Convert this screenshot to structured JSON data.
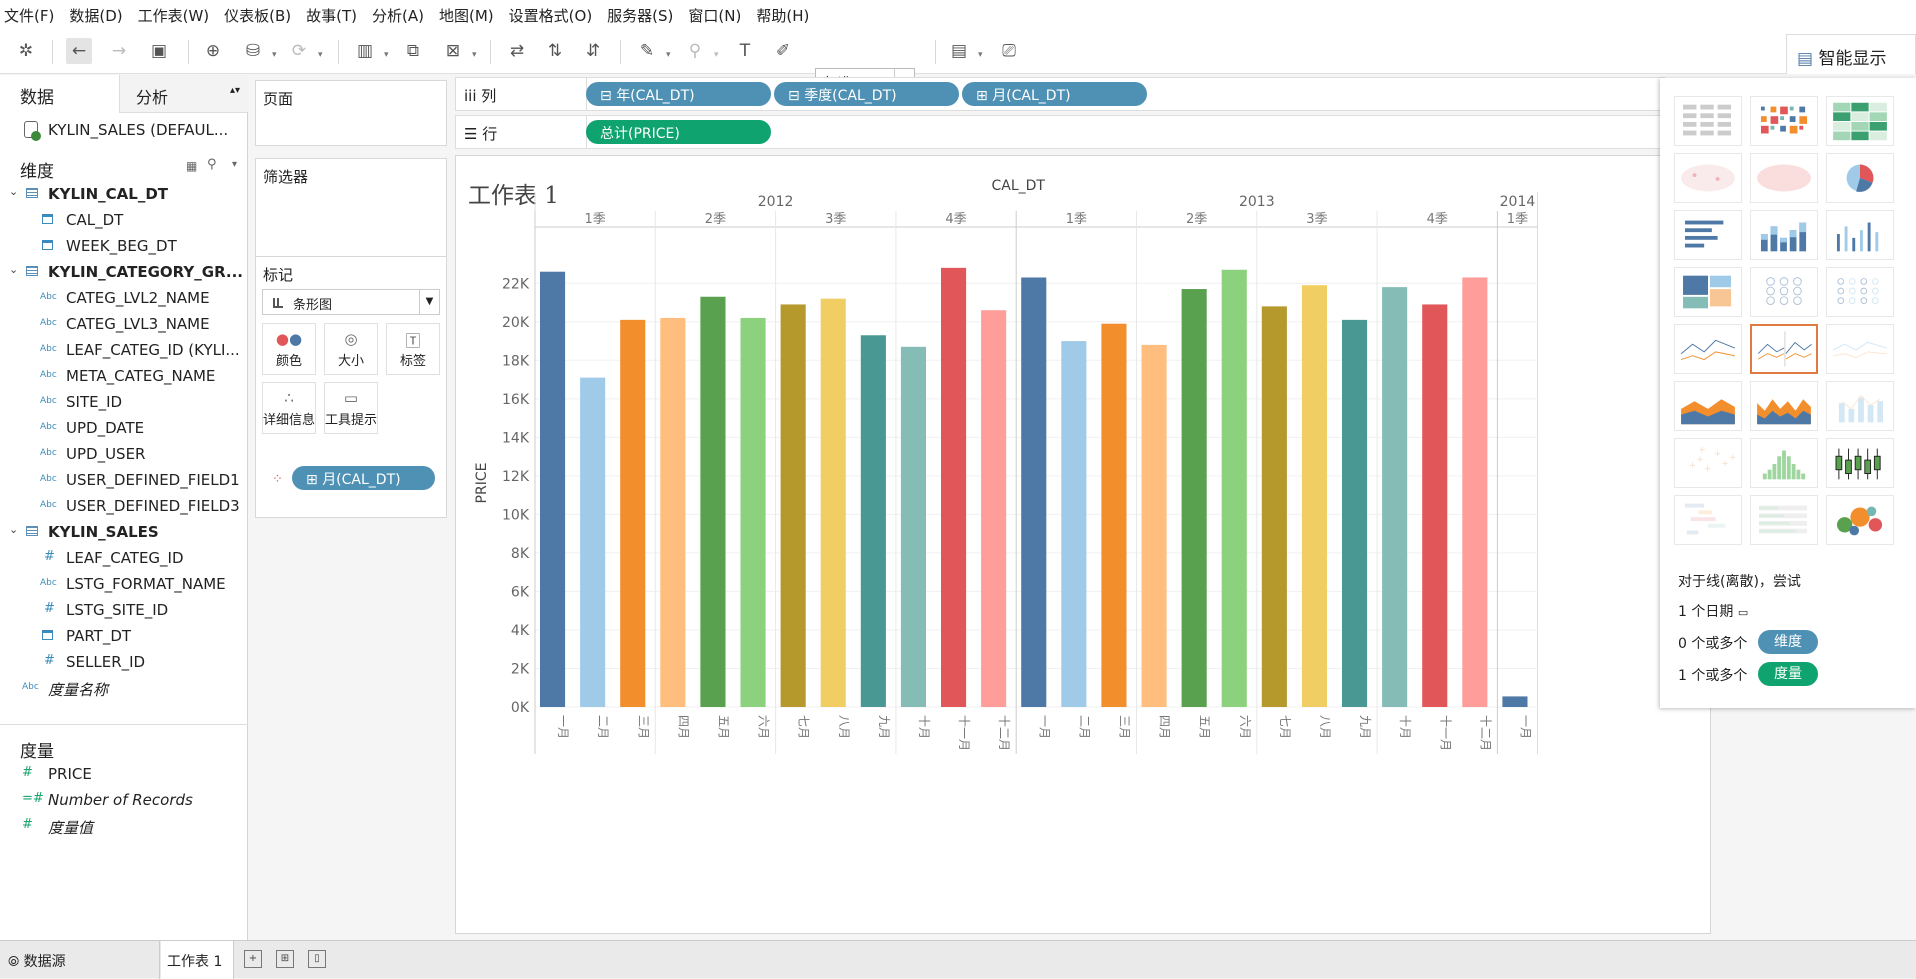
{
  "menu": [
    "文件(F)",
    "数据(D)",
    "工作表(W)",
    "仪表板(B)",
    "故事(T)",
    "分析(A)",
    "地图(M)",
    "设置格式(O)",
    "服务器(S)",
    "窗口(N)",
    "帮助(H)"
  ],
  "toolbar": {
    "fit_select": "标准",
    "smart_show": "智能显示"
  },
  "datapane": {
    "tab_data": "数据",
    "tab_analysis": "分析",
    "datasource": "KYLIN_SALES (DEFAUL...",
    "dimensions_header": "维度",
    "dimensions": [
      {
        "label": "KYLIN_CAL_DT",
        "kind": "table"
      },
      {
        "label": "CAL_DT",
        "kind": "date"
      },
      {
        "label": "WEEK_BEG_DT",
        "kind": "date"
      },
      {
        "label": "KYLIN_CATEGORY_GR...",
        "kind": "table"
      },
      {
        "label": "CATEG_LVL2_NAME",
        "kind": "abc"
      },
      {
        "label": "CATEG_LVL3_NAME",
        "kind": "abc"
      },
      {
        "label": "LEAF_CATEG_ID (KYLI...",
        "kind": "abc"
      },
      {
        "label": "META_CATEG_NAME",
        "kind": "abc"
      },
      {
        "label": "SITE_ID",
        "kind": "abc"
      },
      {
        "label": "UPD_DATE",
        "kind": "abc"
      },
      {
        "label": "UPD_USER",
        "kind": "abc"
      },
      {
        "label": "USER_DEFINED_FIELD1",
        "kind": "abc"
      },
      {
        "label": "USER_DEFINED_FIELD3",
        "kind": "abc"
      },
      {
        "label": "KYLIN_SALES",
        "kind": "table"
      },
      {
        "label": "LEAF_CATEG_ID",
        "kind": "num"
      },
      {
        "label": "LSTG_FORMAT_NAME",
        "kind": "abc"
      },
      {
        "label": "LSTG_SITE_ID",
        "kind": "num"
      },
      {
        "label": "PART_DT",
        "kind": "date"
      },
      {
        "label": "SELLER_ID",
        "kind": "num"
      },
      {
        "label": "度量名称",
        "kind": "abc-italic"
      }
    ],
    "measures_header": "度量",
    "measures": [
      {
        "label": "PRICE",
        "kind": "num"
      },
      {
        "label": "Number of Records",
        "kind": "calc-italic"
      },
      {
        "label": "度量值",
        "kind": "num-italic"
      }
    ]
  },
  "shelves": {
    "pages": "页面",
    "filters": "筛选器",
    "marks": "标记",
    "mark_type": "条形图",
    "mark_buttons": [
      "颜色",
      "大小",
      "标签",
      "详细信息",
      "工具提示"
    ],
    "mark_pill": "月(CAL_DT)",
    "columns_label": "列",
    "rows_label": "行",
    "columns_pills": [
      "年(CAL_DT)",
      "季度(CAL_DT)",
      "月(CAL_DT)"
    ],
    "rows_pills": [
      "总计(PRICE)"
    ]
  },
  "sheet": {
    "title": "工作表 1"
  },
  "chart_data": {
    "type": "bar",
    "title": "CAL_DT",
    "ylabel": "PRICE",
    "ylim": [
      0,
      23000
    ],
    "yticks": [
      "0K",
      "2K",
      "4K",
      "6K",
      "8K",
      "10K",
      "12K",
      "14K",
      "16K",
      "18K",
      "20K",
      "22K"
    ],
    "years": [
      {
        "label": "2012",
        "quarters": [
          {
            "label": "1季",
            "months": [
              "一月",
              "二月",
              "三月"
            ]
          },
          {
            "label": "2季",
            "months": [
              "四月",
              "五月",
              "六月"
            ]
          },
          {
            "label": "3季",
            "months": [
              "七月",
              "八月",
              "九月"
            ]
          },
          {
            "label": "4季",
            "months": [
              "十月",
              "十一月",
              "十二月"
            ]
          }
        ]
      },
      {
        "label": "2013",
        "quarters": [
          {
            "label": "1季",
            "months": [
              "一月",
              "二月",
              "三月"
            ]
          },
          {
            "label": "2季",
            "months": [
              "四月",
              "五月",
              "六月"
            ]
          },
          {
            "label": "3季",
            "months": [
              "七月",
              "八月",
              "九月"
            ]
          },
          {
            "label": "4季",
            "months": [
              "十月",
              "十一月",
              "十二月"
            ]
          }
        ]
      },
      {
        "label": "2014",
        "quarters": [
          {
            "label": "1季",
            "months": [
              "一月"
            ]
          }
        ]
      }
    ],
    "values": [
      22600,
      17100,
      20100,
      20200,
      21300,
      20200,
      20900,
      21200,
      19300,
      18700,
      22800,
      20600,
      22300,
      19000,
      19900,
      18800,
      21700,
      22700,
      20800,
      21900,
      20100,
      21800,
      20900,
      22300,
      550
    ],
    "colors": [
      "#4e79a7",
      "#a0cbe8",
      "#f28e2b",
      "#ffbe7d",
      "#59a14f",
      "#8cd17d",
      "#b6992d",
      "#f1ce63",
      "#499894",
      "#86bcb6",
      "#e15759",
      "#ff9d9a",
      "#4e79a7",
      "#a0cbe8",
      "#f28e2b",
      "#ffbe7d",
      "#59a14f",
      "#8cd17d",
      "#b6992d",
      "#f1ce63",
      "#499894",
      "#86bcb6",
      "#e15759",
      "#ff9d9a",
      "#4e79a7"
    ]
  },
  "smart_panel": {
    "hint": "对于线(离散)，尝试",
    "req1": "1 个日期",
    "req2": "0 个或多个",
    "req2_pill": "维度",
    "req3": "1 个或多个",
    "req3_pill": "度量"
  },
  "bottom": {
    "datasource_tab": "数据源",
    "sheet_tab": "工作表 1"
  }
}
